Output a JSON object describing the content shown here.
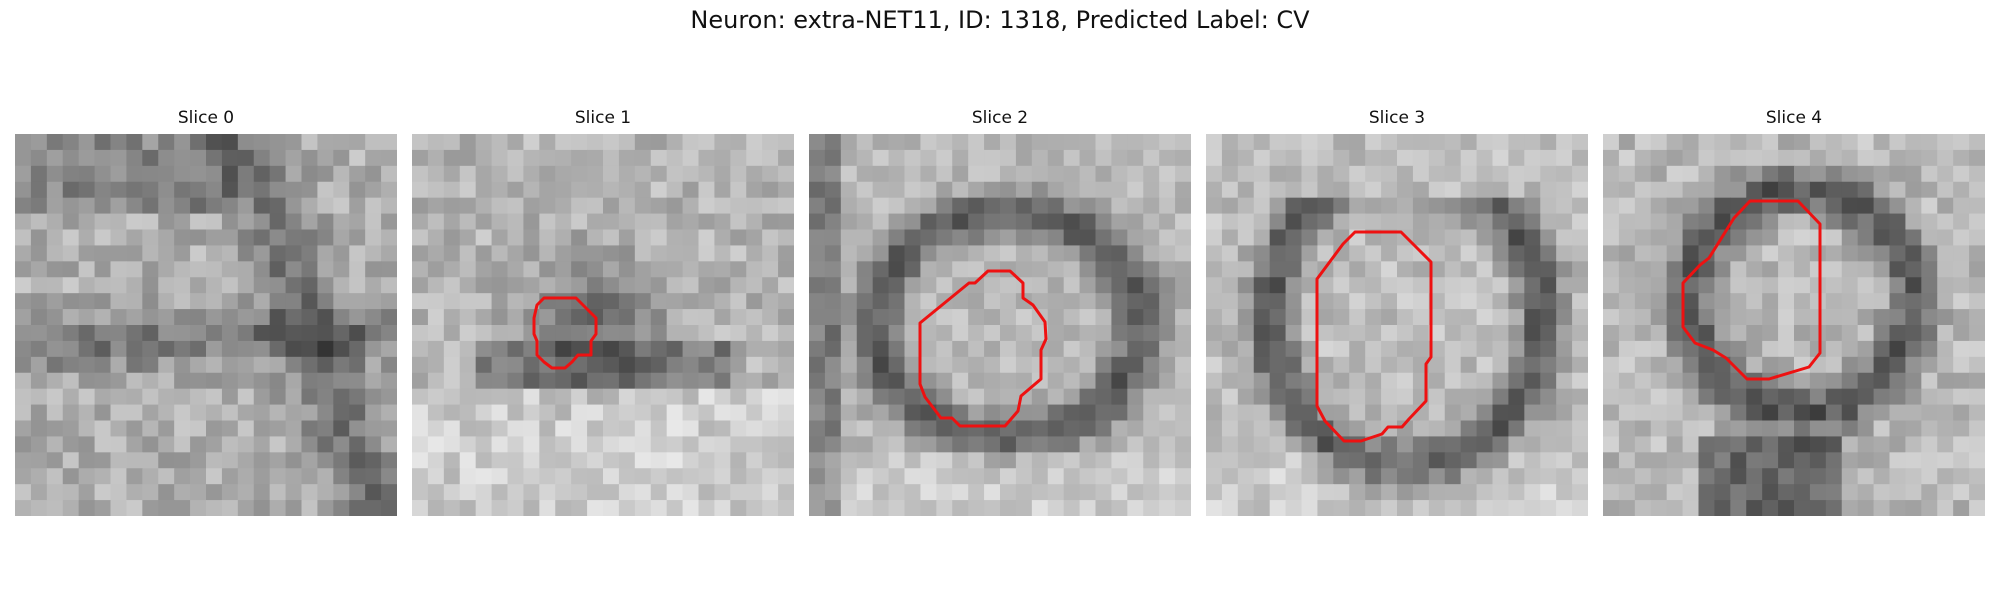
{
  "figure": {
    "title": "Neuron: extra-NET11, ID: 1318, Predicted Label: CV"
  },
  "panels": [
    {
      "title": "Slice 0",
      "has_contour": false
    },
    {
      "title": "Slice 1",
      "has_contour": true
    },
    {
      "title": "Slice 2",
      "has_contour": true
    },
    {
      "title": "Slice 3",
      "has_contour": true
    },
    {
      "title": "Slice 4",
      "has_contour": true
    }
  ],
  "contour_color": "#ee1111"
}
